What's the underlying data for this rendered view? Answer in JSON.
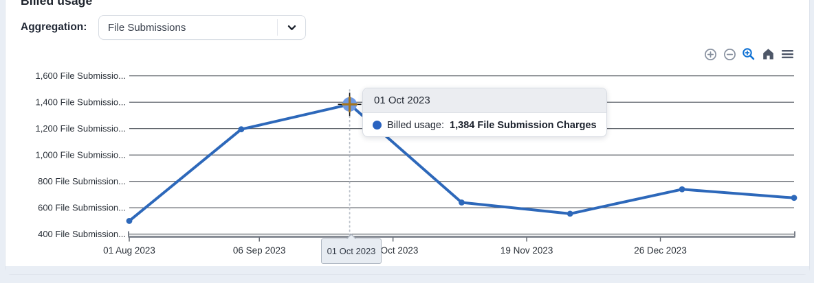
{
  "header": {
    "title": "Billed usage",
    "aggregation_label": "Aggregation:",
    "aggregation_value": "File Submissions"
  },
  "toolbar": {
    "icons": [
      "zoom-in",
      "zoom-out",
      "box-zoom",
      "reset-home",
      "menu"
    ],
    "inactive_color": "#87909f",
    "active_color": "#1273d4",
    "dark_color": "#4e5768"
  },
  "chart_data": {
    "type": "line",
    "title": "Billed usage",
    "grid": true,
    "legend_position": "none",
    "series": [
      {
        "name": "Billed usage",
        "color": "#2d68ba",
        "x": [
          "2023-08-01",
          "2023-09-01",
          "2023-10-01",
          "2023-11-01",
          "2023-12-01",
          "2024-01-01",
          "2024-02-01"
        ],
        "values": [
          500,
          1195,
          1384,
          640,
          555,
          740,
          675
        ]
      }
    ],
    "x_range": [
      "2023-08-01",
      "2024-02-01"
    ],
    "y_range": [
      400,
      1600
    ],
    "y_ticks": [
      {
        "value": 1600,
        "label": "1,600 File Submissio..."
      },
      {
        "value": 1400,
        "label": "1,400 File Submissio..."
      },
      {
        "value": 1200,
        "label": "1,200 File Submissio..."
      },
      {
        "value": 1000,
        "label": "1,000 File Submissio..."
      },
      {
        "value": 800,
        "label": "800 File Submission..."
      },
      {
        "value": 600,
        "label": "600 File Submission..."
      },
      {
        "value": 400,
        "label": "400 File Submission..."
      }
    ],
    "x_ticks": [
      {
        "date": "2023-08-01",
        "label": "01 Aug 2023"
      },
      {
        "date": "2023-09-06",
        "label": "06 Sep 2023"
      },
      {
        "date": "2023-10-13",
        "label": "13 Oct 2023"
      },
      {
        "date": "2023-11-19",
        "label": "19 Nov 2023"
      },
      {
        "date": "2023-12-26",
        "label": "26 Dec 2023"
      }
    ],
    "highlight": {
      "date": "2023-10-01",
      "value": 1384,
      "tooltip_title": "01 Oct 2023",
      "tooltip_series": "Billed usage:",
      "tooltip_value": "1,384 File Submission Charges",
      "axis_label": "01 Oct 2023",
      "marker_fill": "#6f9ae3",
      "cross_color": "#a5751f"
    },
    "colors": {
      "grid": "#4d525a",
      "axis": "#787e88",
      "tick_text": "#2a3038"
    }
  }
}
